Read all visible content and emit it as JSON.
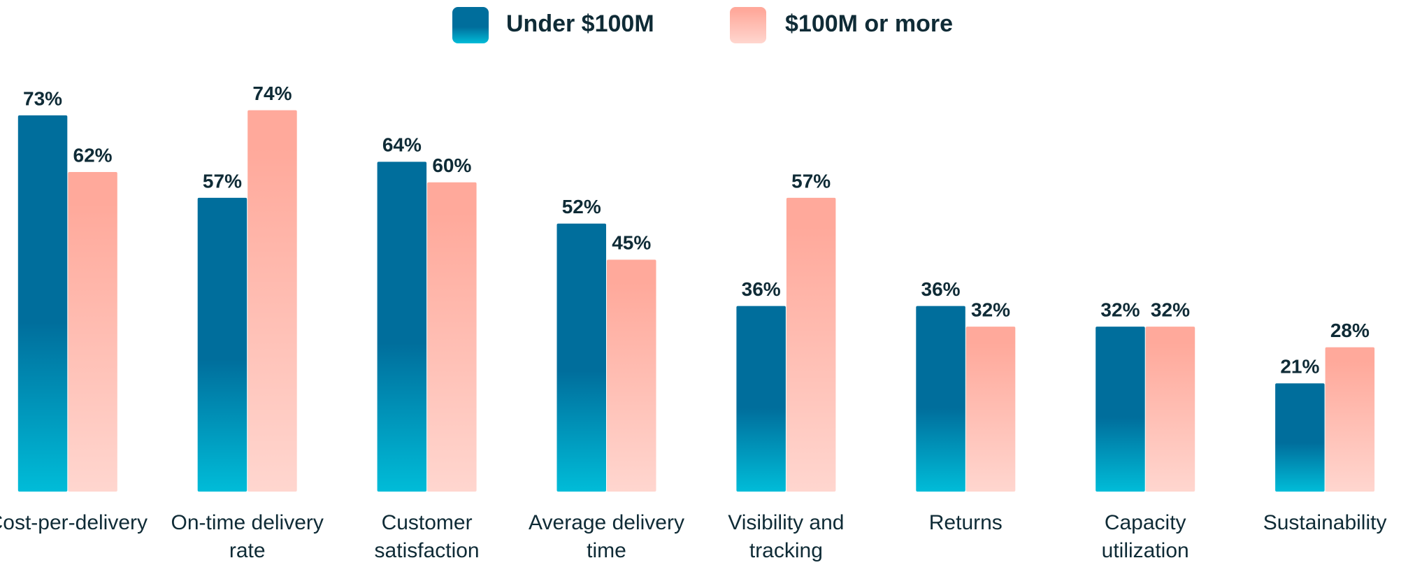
{
  "chart_data": {
    "type": "bar",
    "categories": [
      "Cost-per-delivery",
      "On-time delivery rate",
      "Customer satisfaction",
      "Average delivery time",
      "Visibility and tracking",
      "Returns",
      "Capacity utilization",
      "Sustainability"
    ],
    "series": [
      {
        "name": "Under $100M",
        "color": "#006e9c",
        "values": [
          73,
          57,
          64,
          52,
          36,
          36,
          32,
          21
        ],
        "value_labels": [
          "73%",
          "57%",
          "64%",
          "52%",
          "36%",
          "36%",
          "32%",
          "21%"
        ]
      },
      {
        "name": "$100M or more",
        "color": "#ffa99b",
        "values": [
          62,
          74,
          60,
          45,
          57,
          32,
          32,
          28
        ],
        "value_labels": [
          "62%",
          "74%",
          "60%",
          "45%",
          "57%",
          "32%",
          "32%",
          "28%"
        ]
      }
    ],
    "legend": "top"
  }
}
